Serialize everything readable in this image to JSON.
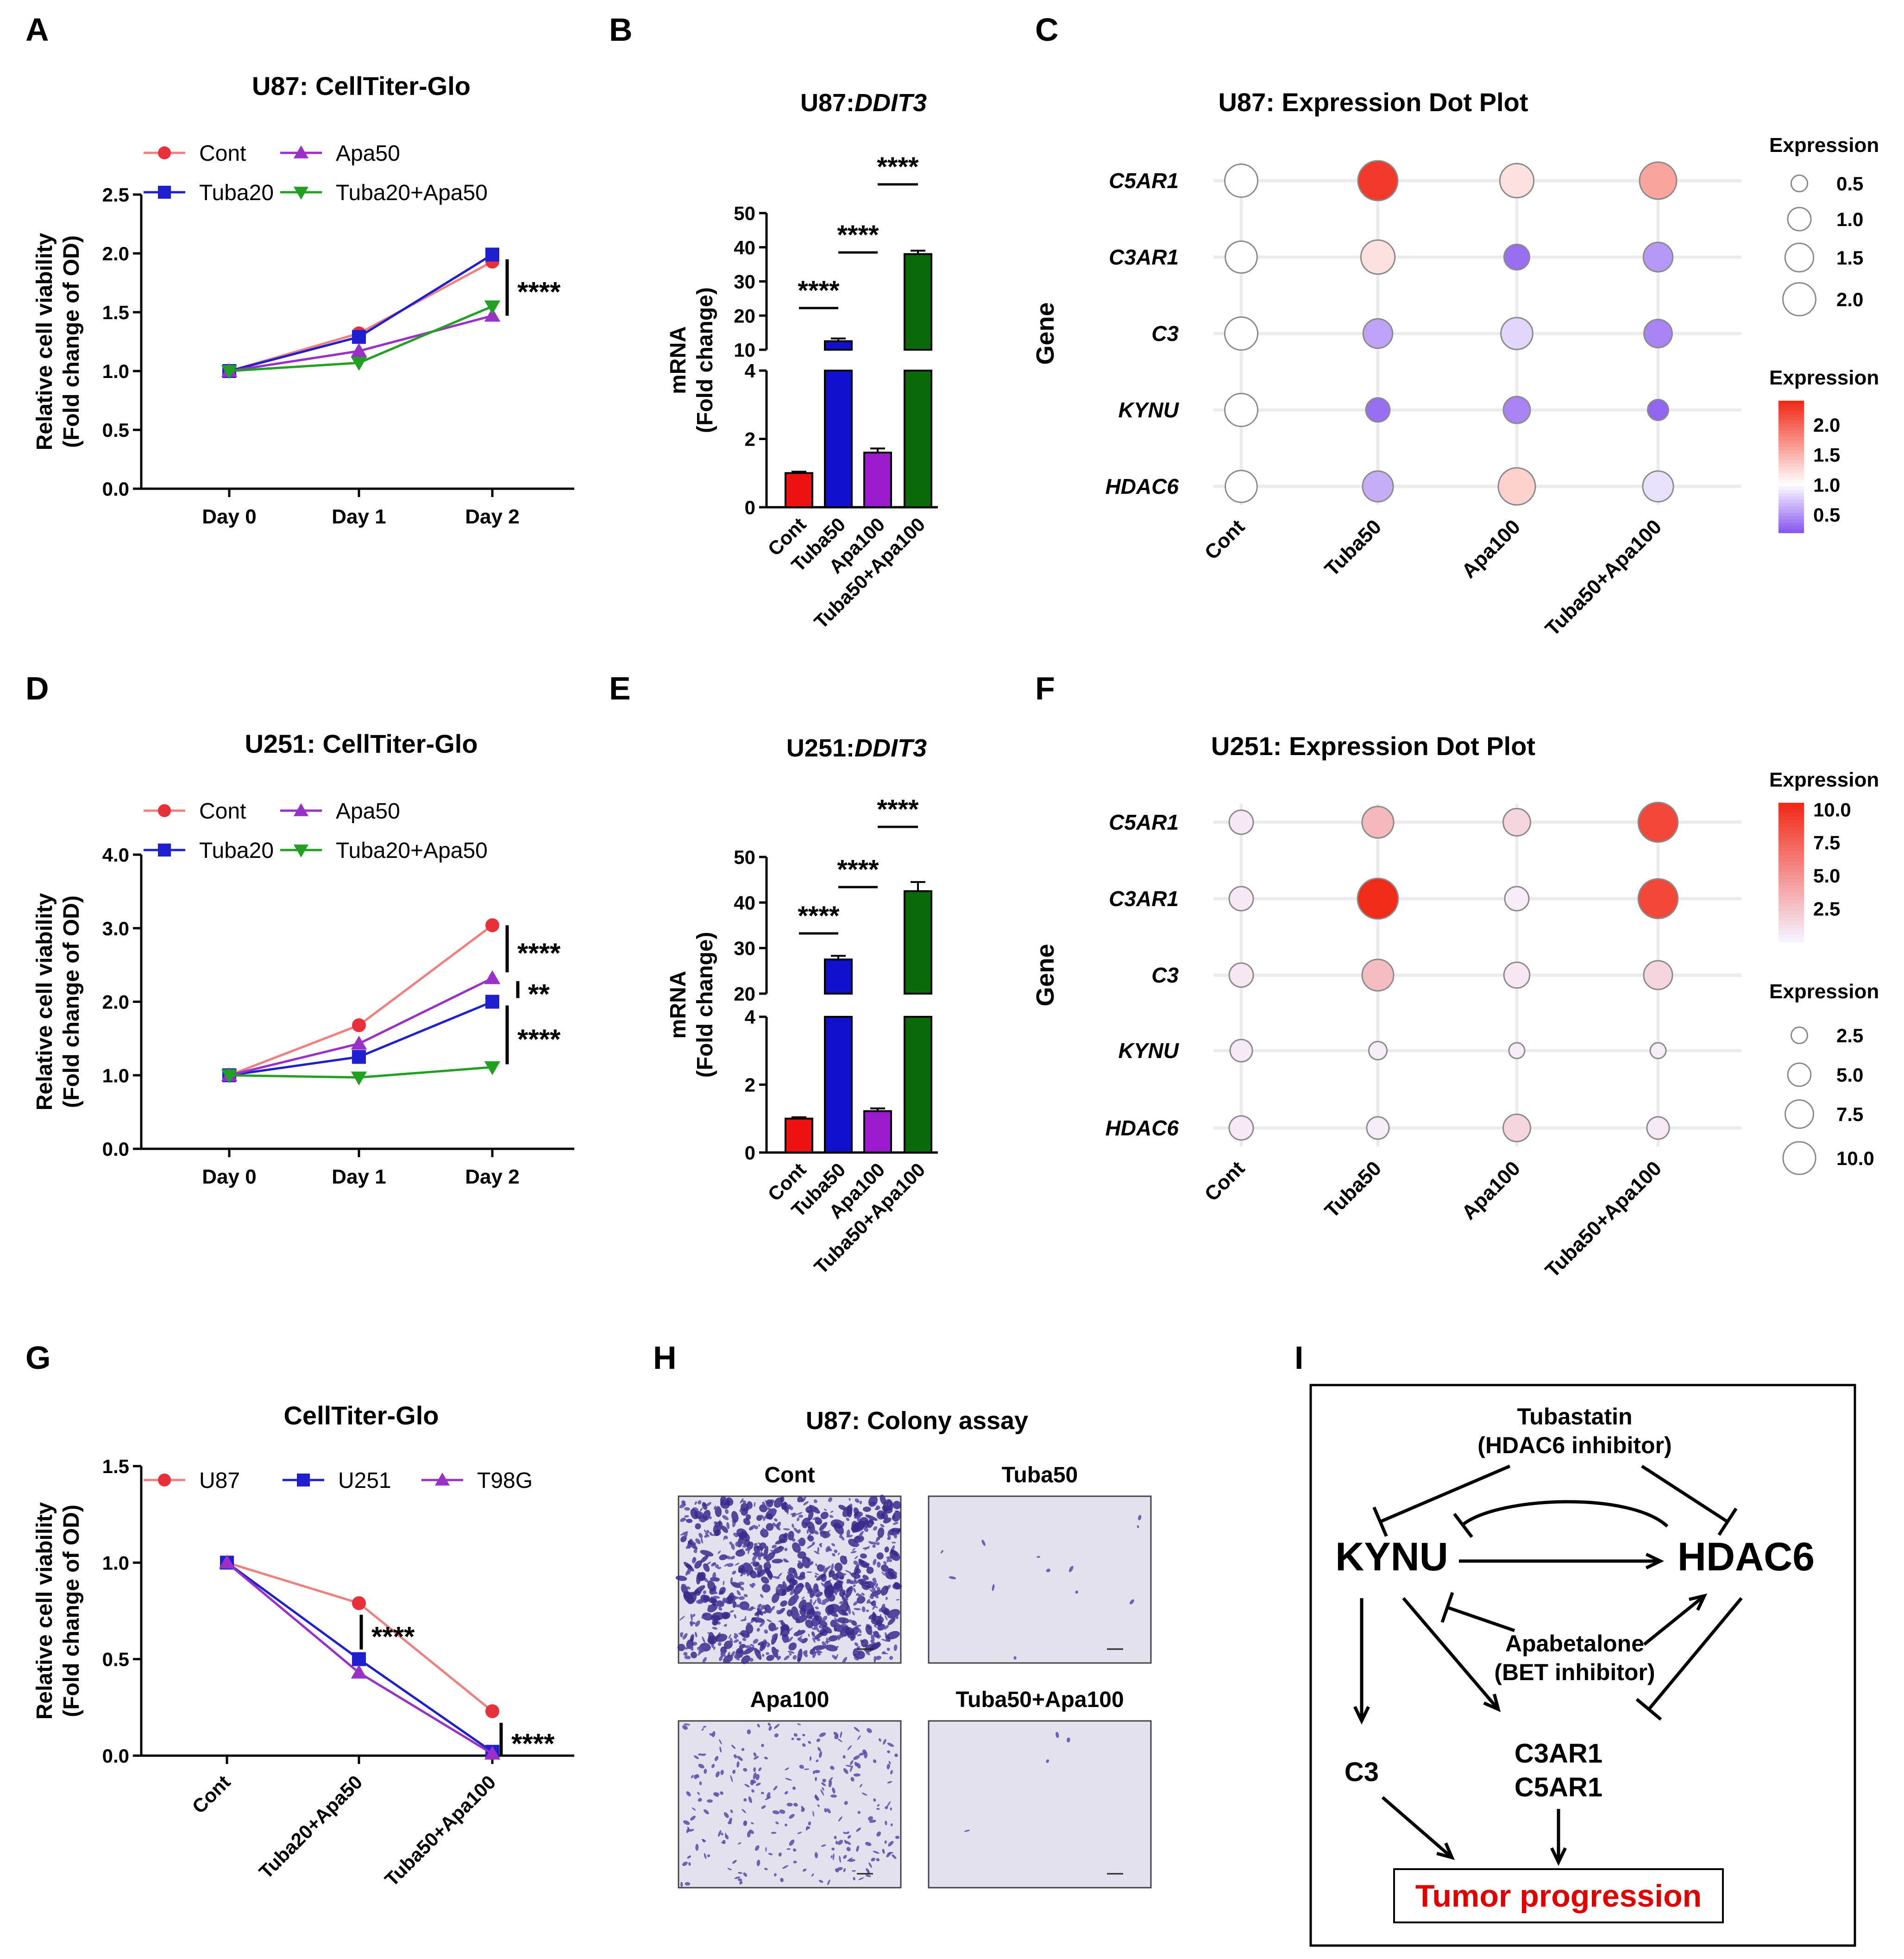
{
  "panel_letters": {
    "A": "A",
    "B": "B",
    "C": "C",
    "D": "D",
    "E": "E",
    "F": "F",
    "G": "G",
    "H": "H",
    "I": "I"
  },
  "colors": {
    "Cont": "#e8303a",
    "Cont_line": "#f08080",
    "Tuba20": "#1f1fd0",
    "Apa50": "#9b30c8",
    "Combo": "#22a022",
    "bar_cont": "#ee1111",
    "bar_tuba": "#1111cc",
    "bar_apa": "#9a1acd",
    "bar_combo": "#0a6a0a",
    "sig": "#000000",
    "tumor": "#e00000"
  },
  "chart_data": [
    {
      "id": "A",
      "type": "line",
      "title": "U87: CellTiter-Glo",
      "ylabel": "Relative cell viability",
      "ylabel2": "(Fold change of OD)",
      "categories": [
        "Day 0",
        "Day 1",
        "Day 2"
      ],
      "ylim": [
        0,
        2.5
      ],
      "yticks": [
        "0.0",
        "0.5",
        "1.0",
        "1.5",
        "2.0",
        "2.5"
      ],
      "series": [
        {
          "name": "Cont",
          "values": [
            1.0,
            1.32,
            1.93
          ],
          "marker": "circle",
          "color": "Cont"
        },
        {
          "name": "Tuba20",
          "values": [
            1.0,
            1.29,
            1.99
          ],
          "marker": "square",
          "color": "Tuba20"
        },
        {
          "name": "Apa50",
          "values": [
            1.0,
            1.17,
            1.47
          ],
          "marker": "triangle",
          "color": "Apa50"
        },
        {
          "name": "Tuba20+Apa50",
          "values": [
            1.0,
            1.07,
            1.55
          ],
          "marker": "triangle-down",
          "color": "Combo"
        }
      ],
      "significance": [
        {
          "label": "****",
          "from": 1.95,
          "to": 1.47
        }
      ]
    },
    {
      "id": "B",
      "type": "bar",
      "title_prefix": "U87: ",
      "title_gene": "DDIT3",
      "ylabel": "mRNA",
      "ylabel2": "(Fold change)",
      "categories": [
        "Cont",
        "Tuba50",
        "Apa100",
        "Tuba50+Apa100"
      ],
      "values": [
        1.0,
        12.5,
        1.6,
        38.0
      ],
      "errors": [
        0.04,
        0.8,
        0.12,
        1.0
      ],
      "bar_colors": [
        "bar_cont",
        "bar_tuba",
        "bar_apa",
        "bar_combo"
      ],
      "lower_ticks": [
        "0",
        "2",
        "4"
      ],
      "upper_ticks": [
        "10",
        "20",
        "30",
        "40",
        "50"
      ],
      "lower_range": [
        0,
        4
      ],
      "upper_range": [
        10,
        50
      ],
      "significance": [
        {
          "label": "****",
          "from": 0,
          "to": 1,
          "level": "low"
        },
        {
          "label": "****",
          "from": 1,
          "to": 2,
          "level": "mid"
        },
        {
          "label": "****",
          "from": 2,
          "to": 3,
          "level": "high"
        }
      ]
    },
    {
      "id": "C",
      "type": "dot",
      "title": "U87: Expression Dot Plot",
      "ylabel": "Gene",
      "genes": [
        "C5AR1",
        "C3AR1",
        "C3",
        "KYNU",
        "HDAC6"
      ],
      "conditions": [
        "Cont",
        "Tuba50",
        "Apa100",
        "Tuba50+Apa100"
      ],
      "color_values": [
        [
          1.0,
          2.3,
          1.2,
          1.6
        ],
        [
          1.0,
          1.2,
          0.3,
          0.5
        ],
        [
          1.0,
          0.55,
          0.8,
          0.4
        ],
        [
          1.0,
          0.3,
          0.4,
          0.25
        ],
        [
          1.0,
          0.6,
          1.3,
          0.85
        ]
      ],
      "size_values": [
        [
          1.5,
          2.2,
          1.6,
          1.9
        ],
        [
          1.4,
          1.6,
          0.9,
          1.2
        ],
        [
          1.5,
          1.2,
          1.4,
          1.1
        ],
        [
          1.5,
          0.8,
          1.0,
          0.6
        ],
        [
          1.4,
          1.3,
          1.9,
          1.3
        ]
      ],
      "color_min": 0.2,
      "color_max": 2.4,
      "legend_size_title": "Expression",
      "legend_size_ticks": [
        "0.5",
        "1.0",
        "1.5",
        "2.0"
      ],
      "legend_color_title": "Expression",
      "legend_color_ticks": [
        "2.0",
        "1.5",
        "1.0",
        "0.5"
      ]
    },
    {
      "id": "D",
      "type": "line",
      "title": "U251: CellTiter-Glo",
      "ylabel": "Relative cell viability",
      "ylabel2": "(Fold change of OD)",
      "categories": [
        "Day 0",
        "Day 1",
        "Day 2"
      ],
      "ylim": [
        0,
        4.0
      ],
      "yticks": [
        "0.0",
        "1.0",
        "2.0",
        "3.0",
        "4.0"
      ],
      "series": [
        {
          "name": "Cont",
          "values": [
            1.0,
            1.68,
            3.04
          ],
          "marker": "circle",
          "color": "Cont"
        },
        {
          "name": "Tuba20",
          "values": [
            1.0,
            1.25,
            2.0
          ],
          "marker": "square",
          "color": "Tuba20"
        },
        {
          "name": "Apa50",
          "values": [
            1.0,
            1.43,
            2.32
          ],
          "marker": "triangle",
          "color": "Apa50"
        },
        {
          "name": "Tuba20+Apa50",
          "values": [
            1.0,
            0.97,
            1.11
          ],
          "marker": "triangle-down",
          "color": "Combo"
        }
      ],
      "significance": [
        {
          "label": "****",
          "from": 3.04,
          "to": 2.4
        },
        {
          "label": "**",
          "from": 2.28,
          "to": 2.05
        },
        {
          "label": "****",
          "from": 1.95,
          "to": 1.15
        }
      ]
    },
    {
      "id": "E",
      "type": "bar",
      "title_prefix": "U251: ",
      "title_gene": "DDIT3",
      "ylabel": "mRNA",
      "ylabel2": "(Fold change)",
      "categories": [
        "Cont",
        "Tuba50",
        "Apa100",
        "Tuba50+Apa100"
      ],
      "values": [
        1.0,
        27.5,
        1.22,
        42.5
      ],
      "errors": [
        0.04,
        0.8,
        0.08,
        2.0
      ],
      "bar_colors": [
        "bar_cont",
        "bar_tuba",
        "bar_apa",
        "bar_combo"
      ],
      "lower_ticks": [
        "0",
        "2",
        "4"
      ],
      "upper_ticks": [
        "20",
        "30",
        "40",
        "50"
      ],
      "lower_range": [
        0,
        4
      ],
      "upper_range": [
        20,
        50
      ],
      "significance": [
        {
          "label": "****",
          "from": 0,
          "to": 1,
          "level": "low"
        },
        {
          "label": "****",
          "from": 1,
          "to": 2,
          "level": "mid"
        },
        {
          "label": "****",
          "from": 2,
          "to": 3,
          "level": "high"
        }
      ]
    },
    {
      "id": "F",
      "type": "dot",
      "title": "U251: Expression Dot Plot",
      "ylabel": "Gene",
      "genes": [
        "C5AR1",
        "C3AR1",
        "C3",
        "KYNU",
        "HDAC6"
      ],
      "conditions": [
        "Cont",
        "Tuba50",
        "Apa100",
        "Tuba50+Apa100"
      ],
      "color_values": [
        [
          0.5,
          3.0,
          1.5,
          9.0
        ],
        [
          0.5,
          10.5,
          0.3,
          9.0
        ],
        [
          0.6,
          2.8,
          0.6,
          1.5
        ],
        [
          0.4,
          0.3,
          0.3,
          0.3
        ],
        [
          0.4,
          0.3,
          1.5,
          0.4
        ]
      ],
      "size_values": [
        [
          3.5,
          6.0,
          4.5,
          9.5
        ],
        [
          3.5,
          10.0,
          3.5,
          9.5
        ],
        [
          3.5,
          6.0,
          4.0,
          5.0
        ],
        [
          3.0,
          2.0,
          1.5,
          1.5
        ],
        [
          3.5,
          3.0,
          4.5,
          3.0
        ]
      ],
      "color_min": 0,
      "color_max": 10.5,
      "legend_color_title": "Expression",
      "legend_color_ticks": [
        "10.0",
        "7.5",
        "5.0",
        "2.5"
      ],
      "legend_size_title": "Expression",
      "legend_size_ticks": [
        "2.5",
        "5.0",
        "7.5",
        "10.0"
      ]
    },
    {
      "id": "G",
      "type": "line",
      "title": "CellTiter-Glo",
      "ylabel": "Relative cell viability",
      "ylabel2": "(Fold change of OD)",
      "categories": [
        "Cont",
        "Tuba20+Apa50",
        "Tuba50+Apa100"
      ],
      "ylim": [
        0,
        1.5
      ],
      "yticks": [
        "0.0",
        "0.5",
        "1.0",
        "1.5"
      ],
      "series": [
        {
          "name": "U87",
          "values": [
            1.0,
            0.79,
            0.23
          ],
          "marker": "circle",
          "color": "Cont"
        },
        {
          "name": "U251",
          "values": [
            1.0,
            0.5,
            0.02
          ],
          "marker": "square",
          "color": "Tuba20"
        },
        {
          "name": "T98G",
          "values": [
            1.0,
            0.43,
            0.01
          ],
          "marker": "triangle",
          "color": "Apa50"
        }
      ],
      "significance": [
        {
          "label": "****",
          "from": 0.73,
          "to": 0.55,
          "at": 1
        },
        {
          "label": "****",
          "from": 0.17,
          "to": 0.0,
          "at": 2
        }
      ]
    }
  ],
  "colony": {
    "title": "U87: Colony assay",
    "labels": [
      "Cont",
      "Tuba50",
      "Apa100",
      "Tuba50+Apa100"
    ],
    "densities": [
      900,
      12,
      260,
      4
    ]
  },
  "pathway": {
    "tubastatin": "Tubastatin",
    "tubastatin_sub": "(HDAC6 inhibitor)",
    "kynu": "KYNU",
    "hdac6": "HDAC6",
    "apabetalone": "Apabetalone",
    "apabetalone_sub": "(BET inhibitor)",
    "c3": "C3",
    "c3ar1": "C3AR1",
    "c5ar1": "C5AR1",
    "tumor": "Tumor progression"
  }
}
